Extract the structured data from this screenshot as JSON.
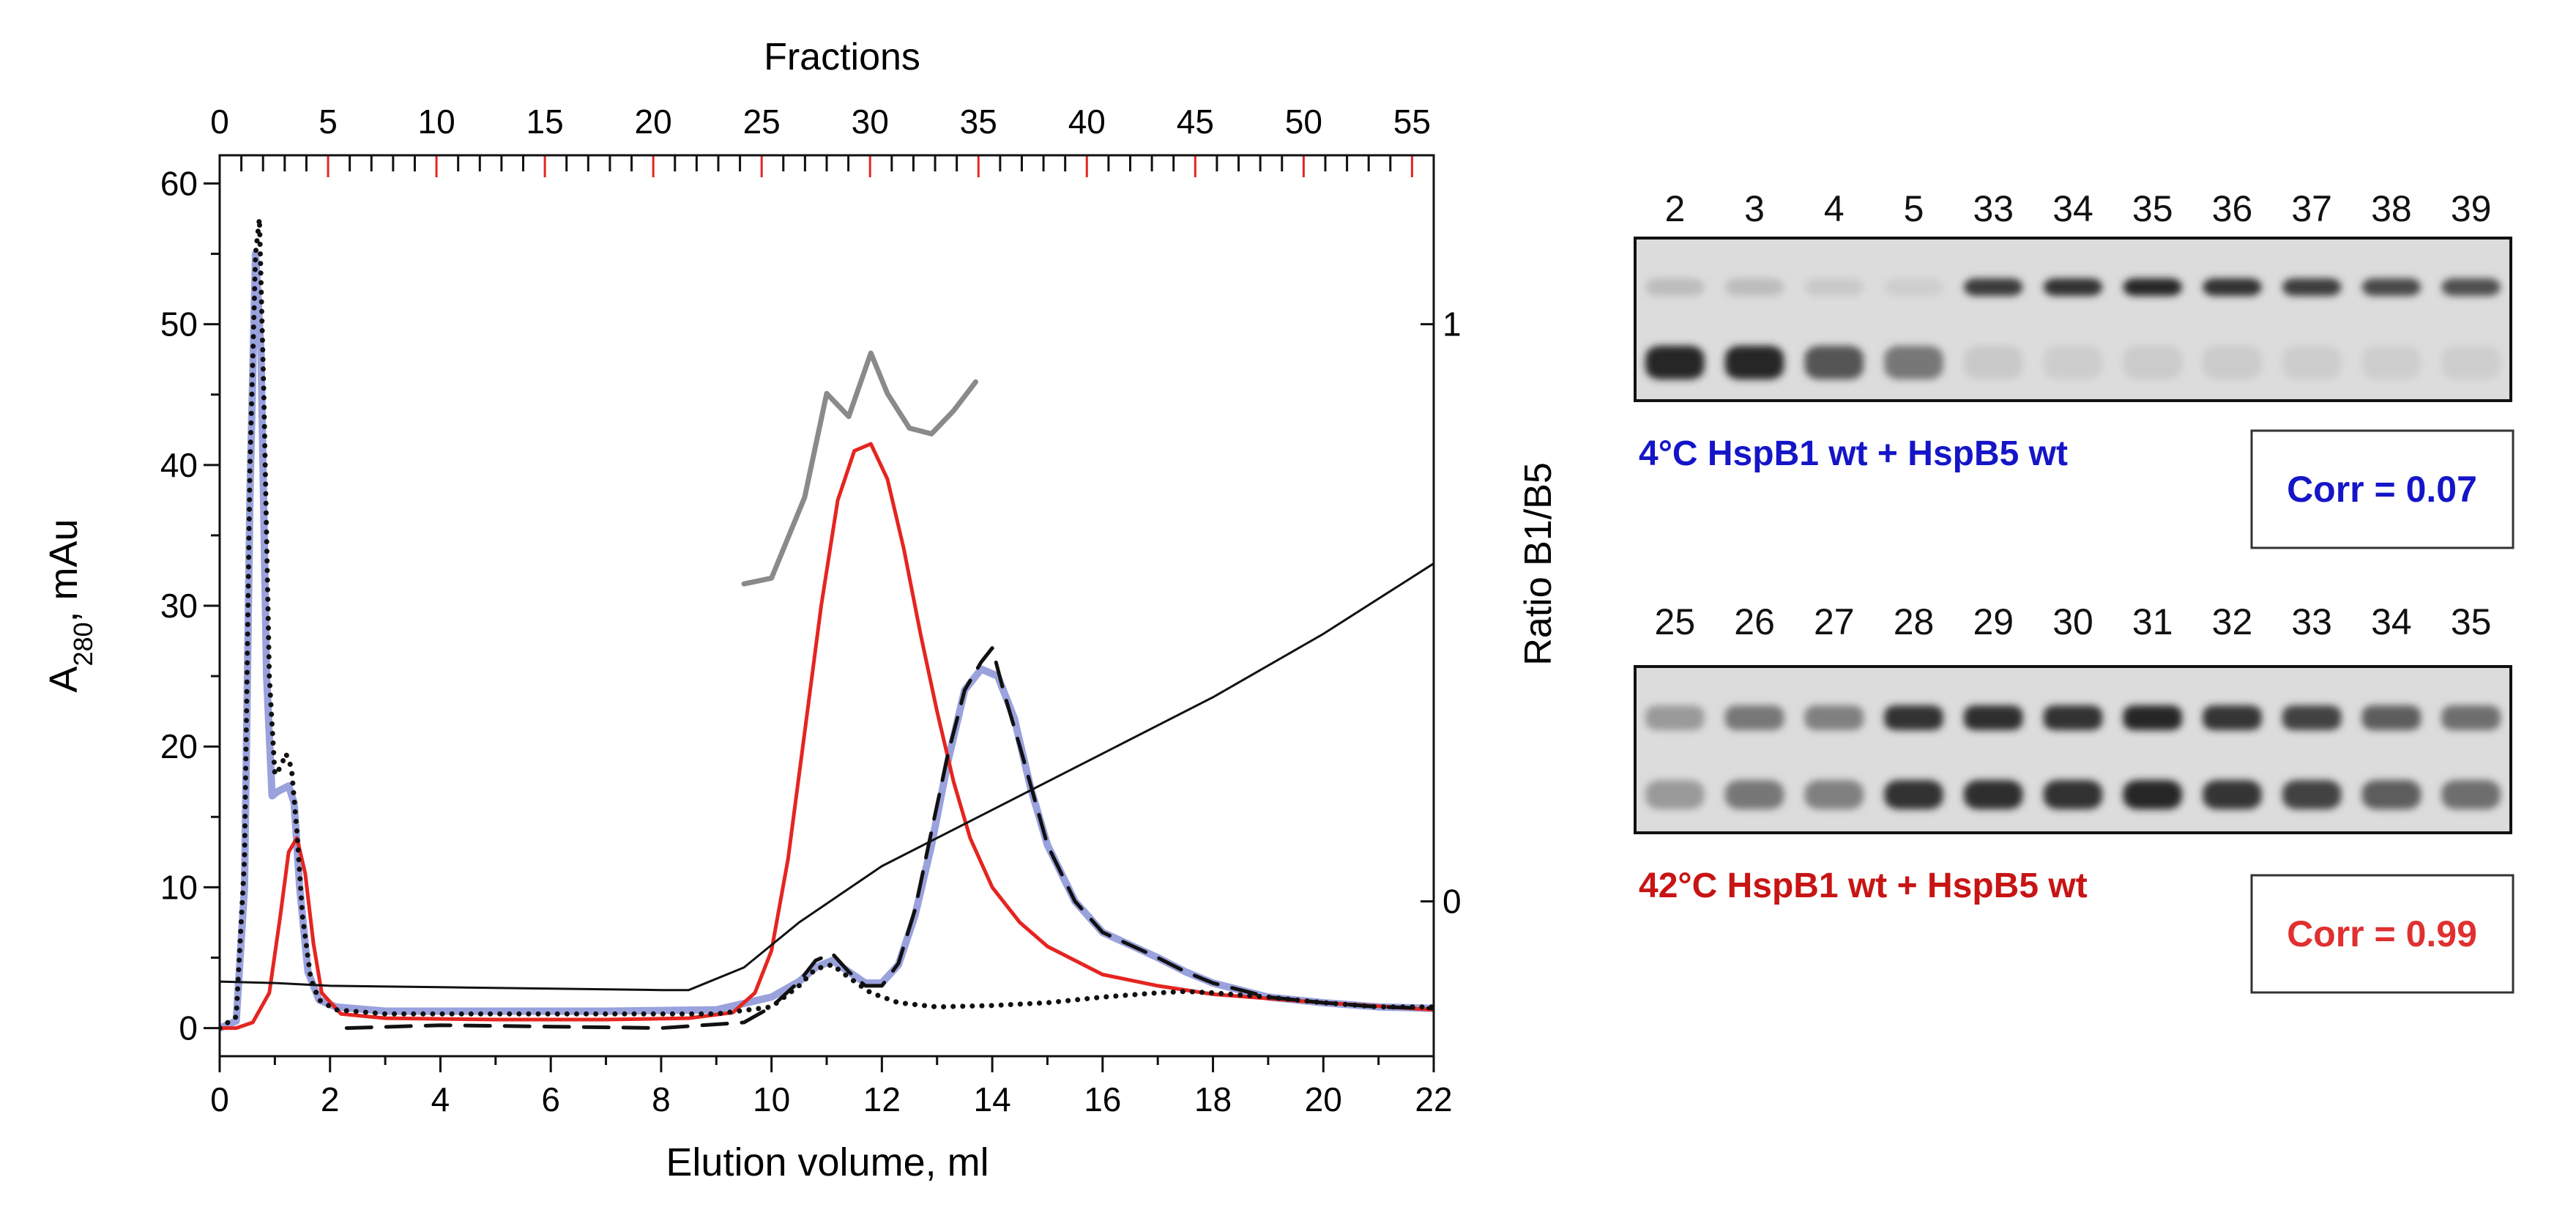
{
  "chart_data": {
    "type": "line",
    "title": "",
    "xlabel": "Elution volume, ml",
    "ylabel_main": "A",
    "ylabel_sub": "280",
    "ylabel_suffix": ", mAu",
    "y2label": "Ratio B1/B5",
    "x2label": "Fractions",
    "xlim": [
      0,
      22
    ],
    "ylim": [
      -2,
      62
    ],
    "x_ticks": [
      "0",
      "2",
      "4",
      "6",
      "8",
      "10",
      "12",
      "14",
      "16",
      "18",
      "20",
      "22"
    ],
    "y_ticks": [
      "0",
      "10",
      "20",
      "30",
      "40",
      "50",
      "60"
    ],
    "fraction_ticks": [
      "0",
      "5",
      "10",
      "15",
      "20",
      "25",
      "30",
      "35",
      "40",
      "45",
      "50",
      "55"
    ],
    "fraction_range": [
      0,
      56
    ],
    "ratio_ticks": [
      "0",
      "1"
    ],
    "ratio_axis": {
      "y_at_0": 9,
      "y_at_1": 50
    },
    "series": [
      {
        "name": "red_trace",
        "color": "#e52520",
        "style": "solid",
        "x": [
          0,
          0.3,
          0.6,
          0.9,
          1.1,
          1.25,
          1.4,
          1.55,
          1.7,
          1.85,
          2.2,
          3,
          5,
          7,
          8.5,
          9.3,
          9.7,
          10,
          10.3,
          10.6,
          10.9,
          11.2,
          11.5,
          11.8,
          12.1,
          12.4,
          12.7,
          13,
          13.3,
          13.6,
          14,
          14.5,
          15,
          16,
          17,
          18,
          20,
          22
        ],
        "y": [
          0,
          0,
          0.4,
          2.5,
          8,
          12.5,
          13.5,
          11,
          6,
          2.5,
          1,
          0.7,
          0.6,
          0.6,
          0.7,
          1.1,
          2.5,
          5.5,
          12,
          21,
          30,
          37.5,
          41,
          41.5,
          39,
          34,
          28,
          22.5,
          17.5,
          13.5,
          10,
          7.5,
          5.8,
          3.8,
          3.0,
          2.4,
          1.8,
          1.3
        ]
      },
      {
        "name": "blue_trace",
        "color": "#9aa2dd",
        "style": "solid",
        "x": [
          0,
          0.3,
          0.45,
          0.55,
          0.65,
          0.75,
          0.85,
          0.95,
          1.05,
          1.15,
          1.25,
          1.35,
          1.45,
          1.6,
          1.8,
          2.1,
          3,
          5,
          7,
          9,
          10,
          10.5,
          10.8,
          11.1,
          11.4,
          11.7,
          12,
          12.3,
          12.6,
          12.9,
          13.2,
          13.5,
          13.8,
          14.1,
          14.4,
          14.7,
          15,
          15.5,
          16,
          17,
          17.5,
          18,
          19,
          20,
          21,
          22
        ],
        "y": [
          0,
          0.5,
          10,
          38,
          55,
          48,
          25,
          16.5,
          16.8,
          17,
          17.2,
          16,
          10,
          4,
          2,
          1.5,
          1.2,
          1.2,
          1.2,
          1.3,
          2.2,
          3.3,
          4.3,
          4.8,
          4.0,
          3.2,
          3.2,
          4.5,
          8,
          13,
          19,
          24,
          25.5,
          25,
          22,
          17,
          13,
          9,
          6.8,
          5.0,
          4.0,
          3.2,
          2.2,
          1.8,
          1.5,
          1.4
        ]
      },
      {
        "name": "dashed_trace",
        "color": "#111111",
        "style": "dashed",
        "x": [
          2.3,
          4,
          6,
          8,
          9.5,
          10,
          10.5,
          10.8,
          11.1,
          11.4,
          11.7,
          12,
          12.3,
          12.6,
          12.9,
          13.2,
          13.5,
          13.8,
          14.0,
          14.2,
          14.5,
          15,
          15.5,
          16,
          17,
          17.5,
          18,
          19,
          20,
          21,
          22
        ],
        "y": [
          0,
          0.2,
          0.1,
          0,
          0.4,
          1.5,
          3.3,
          4.8,
          5.3,
          4.0,
          3.0,
          3.0,
          4.6,
          8.4,
          14,
          19.5,
          24,
          26,
          27,
          24,
          20,
          13,
          9,
          6.8,
          5.0,
          4.0,
          3.2,
          2.2,
          1.8,
          1.5,
          1.4
        ]
      },
      {
        "name": "dotted_trace",
        "color": "#111111",
        "style": "dotted",
        "x": [
          0,
          0.3,
          0.45,
          0.55,
          0.65,
          0.72,
          0.8,
          0.9,
          1.0,
          1.1,
          1.2,
          1.3,
          1.4,
          1.5,
          1.65,
          1.8,
          2.1,
          3,
          5,
          7,
          9,
          10,
          10.5,
          10.8,
          11.1,
          11.4,
          11.8,
          12.3,
          13,
          14,
          15,
          16,
          17,
          17.5,
          18,
          19,
          20,
          21,
          22
        ],
        "y": [
          0,
          0.8,
          12,
          40,
          55,
          57.5,
          45,
          25,
          18,
          18.5,
          19.5,
          18.5,
          14,
          8,
          3.5,
          2,
          1.3,
          1.0,
          1.0,
          1.0,
          1.0,
          1.5,
          3.0,
          4.2,
          4.5,
          3.6,
          2.5,
          1.8,
          1.5,
          1.6,
          1.8,
          2.2,
          2.5,
          2.6,
          2.5,
          2.2,
          1.8,
          1.5,
          1.5
        ]
      },
      {
        "name": "gradient_line",
        "color": "#111111",
        "style": "thin",
        "x": [
          0,
          1,
          2,
          4,
          6,
          8,
          8.5,
          9.5,
          10.5,
          12,
          14,
          16,
          18,
          20,
          22
        ],
        "y": [
          3.3,
          3.2,
          3.0,
          2.9,
          2.8,
          2.7,
          2.7,
          4.3,
          7.5,
          11.5,
          15.5,
          19.5,
          23.5,
          28,
          33
        ]
      },
      {
        "name": "ratio_B1_B5",
        "color": "#8a8a8a",
        "style": "solid",
        "axis": "right",
        "x": [
          9.5,
          10,
          10.6,
          11,
          11.4,
          11.8,
          12.1,
          12.5,
          12.9,
          13.3,
          13.7
        ],
        "y": [
          0.55,
          0.56,
          0.7,
          0.88,
          0.84,
          0.95,
          0.88,
          0.82,
          0.81,
          0.85,
          0.9
        ]
      }
    ]
  },
  "gels": [
    {
      "lanes": [
        "2",
        "3",
        "4",
        "5",
        "33",
        "34",
        "35",
        "36",
        "37",
        "38",
        "39"
      ],
      "condition": "4°C HspB1 wt + HspB5 wt",
      "condition_color": "#1515c8",
      "corr": "Corr = 0.07",
      "upper_band": [
        0.15,
        0.15,
        0.08,
        0.05,
        0.9,
        0.95,
        1.0,
        0.95,
        0.88,
        0.82,
        0.78
      ],
      "lower_band": [
        1.0,
        1.0,
        0.75,
        0.55,
        0.08,
        0.06,
        0.07,
        0.07,
        0.06,
        0.05,
        0.05
      ]
    },
    {
      "lanes": [
        "25",
        "26",
        "27",
        "28",
        "29",
        "30",
        "31",
        "32",
        "33",
        "34",
        "35"
      ],
      "condition": "42°C HspB1 wt + HspB5 wt",
      "condition_color": "#c81414",
      "corr": "Corr = 0.99",
      "upper_band": [
        0.35,
        0.55,
        0.5,
        0.95,
        0.97,
        0.95,
        1.0,
        0.92,
        0.85,
        0.7,
        0.6
      ],
      "lower_band": [
        0.35,
        0.55,
        0.5,
        0.95,
        0.97,
        0.95,
        1.0,
        0.92,
        0.85,
        0.7,
        0.6
      ]
    }
  ]
}
